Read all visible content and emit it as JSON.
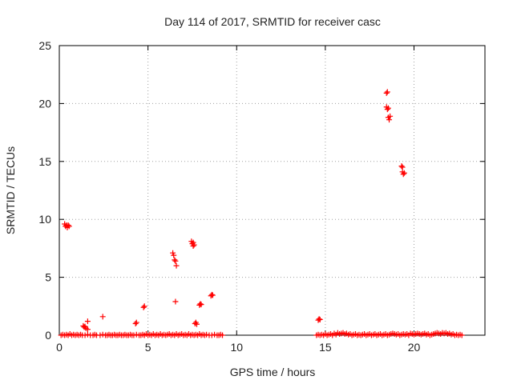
{
  "chart_data": {
    "type": "scatter",
    "title": "Day 114 of 2017, SRMTID for receiver casc",
    "xlabel": "GPS time / hours",
    "ylabel": "SRMTID / TECUs",
    "xlim": [
      0,
      24
    ],
    "ylim": [
      0,
      25
    ],
    "xticks": [
      0,
      5,
      10,
      15,
      20
    ],
    "yticks": [
      0,
      5,
      10,
      15,
      20,
      25
    ],
    "grid": true,
    "marker": "plus",
    "color": "#ff0000",
    "series": [
      {
        "points": [
          [
            0.1,
            0
          ],
          [
            0.2,
            0.05
          ],
          [
            0.3,
            0
          ],
          [
            0.4,
            0.05
          ],
          [
            0.5,
            0
          ],
          [
            0.6,
            0.1
          ],
          [
            0.7,
            0
          ],
          [
            0.8,
            0.05
          ],
          [
            0.9,
            0
          ],
          [
            1.0,
            0.05
          ],
          [
            1.1,
            0
          ],
          [
            1.2,
            0.05
          ],
          [
            1.3,
            0
          ],
          [
            1.45,
            0
          ],
          [
            1.6,
            0.05
          ],
          [
            1.75,
            0
          ],
          [
            1.9,
            0
          ],
          [
            2.0,
            0.05
          ],
          [
            2.1,
            0
          ],
          [
            2.3,
            0
          ],
          [
            2.45,
            0.05
          ],
          [
            2.6,
            0
          ],
          [
            2.7,
            0
          ],
          [
            2.8,
            0.05
          ],
          [
            2.9,
            0
          ],
          [
            3.0,
            0
          ],
          [
            3.1,
            0.05
          ],
          [
            3.2,
            0
          ],
          [
            3.3,
            0
          ],
          [
            3.4,
            0.05
          ],
          [
            3.5,
            0
          ],
          [
            3.6,
            0
          ],
          [
            3.7,
            0.05
          ],
          [
            3.8,
            0
          ],
          [
            3.9,
            0
          ],
          [
            4.0,
            0.05
          ],
          [
            4.1,
            0
          ],
          [
            4.2,
            0
          ],
          [
            4.35,
            0.05
          ],
          [
            4.5,
            0
          ],
          [
            4.6,
            0
          ],
          [
            4.7,
            0.05
          ],
          [
            4.8,
            0
          ],
          [
            4.9,
            0.1
          ],
          [
            5.0,
            0
          ],
          [
            5.1,
            0.05
          ],
          [
            5.2,
            0
          ],
          [
            5.3,
            0.1
          ],
          [
            5.4,
            0
          ],
          [
            5.5,
            0.05
          ],
          [
            5.6,
            0
          ],
          [
            5.7,
            0.1
          ],
          [
            5.8,
            0
          ],
          [
            5.9,
            0.05
          ],
          [
            6.0,
            0
          ],
          [
            6.1,
            0.05
          ],
          [
            6.2,
            0.1
          ],
          [
            6.3,
            0
          ],
          [
            6.4,
            0.05
          ],
          [
            6.5,
            0
          ],
          [
            6.6,
            0.1
          ],
          [
            6.7,
            0
          ],
          [
            6.8,
            0.05
          ],
          [
            6.9,
            0.1
          ],
          [
            7.0,
            0
          ],
          [
            7.1,
            0.05
          ],
          [
            7.2,
            0
          ],
          [
            7.3,
            0.1
          ],
          [
            7.4,
            0
          ],
          [
            7.5,
            0.05
          ],
          [
            7.6,
            0
          ],
          [
            7.7,
            0.05
          ],
          [
            7.8,
            0
          ],
          [
            7.9,
            0.1
          ],
          [
            8.0,
            0
          ],
          [
            8.1,
            0.05
          ],
          [
            8.2,
            0
          ],
          [
            8.3,
            0.05
          ],
          [
            8.45,
            0
          ],
          [
            8.6,
            0
          ],
          [
            8.75,
            0.05
          ],
          [
            8.9,
            0
          ],
          [
            9.0,
            0
          ],
          [
            9.1,
            0.05
          ],
          [
            9.2,
            0
          ],
          [
            0.3,
            9.6
          ],
          [
            0.35,
            9.4
          ],
          [
            0.4,
            9.5
          ],
          [
            0.45,
            9.3
          ],
          [
            0.5,
            9.5
          ],
          [
            0.55,
            9.4
          ],
          [
            1.35,
            0.8
          ],
          [
            1.4,
            0.7
          ],
          [
            1.45,
            0.75
          ],
          [
            1.5,
            0.6
          ],
          [
            1.6,
            0.5
          ],
          [
            1.6,
            1.2
          ],
          [
            2.45,
            1.6
          ],
          [
            4.3,
            1.0
          ],
          [
            4.35,
            1.1
          ],
          [
            4.75,
            2.4
          ],
          [
            4.8,
            2.5
          ],
          [
            6.4,
            7.1
          ],
          [
            6.45,
            6.9
          ],
          [
            6.5,
            6.5
          ],
          [
            6.55,
            6.4
          ],
          [
            6.6,
            6.0
          ],
          [
            6.55,
            2.9
          ],
          [
            7.45,
            8.1
          ],
          [
            7.5,
            7.9
          ],
          [
            7.55,
            8.0
          ],
          [
            7.55,
            7.7
          ],
          [
            7.6,
            7.8
          ],
          [
            7.65,
            1.0
          ],
          [
            7.7,
            1.1
          ],
          [
            7.75,
            0.95
          ],
          [
            7.9,
            2.6
          ],
          [
            7.95,
            2.7
          ],
          [
            8.0,
            2.65
          ],
          [
            8.55,
            3.4
          ],
          [
            8.6,
            3.5
          ],
          [
            8.65,
            3.45
          ],
          [
            14.6,
            1.3
          ],
          [
            14.65,
            1.4
          ],
          [
            14.7,
            1.35
          ],
          [
            14.5,
            0
          ],
          [
            14.6,
            0.05
          ],
          [
            14.7,
            0
          ],
          [
            14.8,
            0.05
          ],
          [
            14.9,
            0
          ],
          [
            15.0,
            0.1
          ],
          [
            15.1,
            0
          ],
          [
            15.2,
            0.05
          ],
          [
            15.3,
            0.1
          ],
          [
            15.4,
            0
          ],
          [
            15.5,
            0.15
          ],
          [
            15.6,
            0.05
          ],
          [
            15.7,
            0.2
          ],
          [
            15.8,
            0.1
          ],
          [
            15.9,
            0.15
          ],
          [
            16.0,
            0.2
          ],
          [
            16.1,
            0.1
          ],
          [
            16.2,
            0.15
          ],
          [
            16.3,
            0.05
          ],
          [
            16.4,
            0.1
          ],
          [
            16.5,
            0
          ],
          [
            16.6,
            0.05
          ],
          [
            16.7,
            0.1
          ],
          [
            16.8,
            0
          ],
          [
            16.9,
            0.05
          ],
          [
            17.0,
            0
          ],
          [
            17.1,
            0.05
          ],
          [
            17.2,
            0.1
          ],
          [
            17.3,
            0
          ],
          [
            17.4,
            0.05
          ],
          [
            17.5,
            0.1
          ],
          [
            17.6,
            0
          ],
          [
            17.7,
            0.05
          ],
          [
            17.8,
            0.1
          ],
          [
            17.9,
            0
          ],
          [
            18.0,
            0.05
          ],
          [
            18.1,
            0.1
          ],
          [
            18.2,
            0
          ],
          [
            18.3,
            0.05
          ],
          [
            18.4,
            0.1
          ],
          [
            18.5,
            0
          ],
          [
            18.6,
            0.05
          ],
          [
            18.7,
            0.1
          ],
          [
            18.8,
            0.15
          ],
          [
            18.9,
            0.1
          ],
          [
            19.0,
            0.05
          ],
          [
            19.1,
            0.1
          ],
          [
            19.2,
            0
          ],
          [
            19.3,
            0.05
          ],
          [
            19.4,
            0.1
          ],
          [
            19.5,
            0.05
          ],
          [
            19.6,
            0.1
          ],
          [
            19.7,
            0
          ],
          [
            19.8,
            0.15
          ],
          [
            19.9,
            0.1
          ],
          [
            20.0,
            0.05
          ],
          [
            20.1,
            0.1
          ],
          [
            20.2,
            0.15
          ],
          [
            20.3,
            0.1
          ],
          [
            20.4,
            0.05
          ],
          [
            20.5,
            0.1
          ],
          [
            20.6,
            0.15
          ],
          [
            20.7,
            0.05
          ],
          [
            20.8,
            0.1
          ],
          [
            20.9,
            0
          ],
          [
            21.0,
            0.05
          ],
          [
            21.1,
            0.1
          ],
          [
            21.2,
            0.15
          ],
          [
            21.3,
            0.2
          ],
          [
            21.4,
            0.15
          ],
          [
            21.5,
            0.1
          ],
          [
            21.6,
            0.2
          ],
          [
            21.7,
            0.15
          ],
          [
            21.8,
            0.2
          ],
          [
            21.9,
            0.1
          ],
          [
            22.0,
            0.15
          ],
          [
            22.1,
            0.05
          ],
          [
            22.2,
            0.1
          ],
          [
            22.3,
            0
          ],
          [
            22.4,
            0.05
          ],
          [
            22.5,
            0
          ],
          [
            22.6,
            0.05
          ],
          [
            22.7,
            0
          ],
          [
            18.45,
            20.9
          ],
          [
            18.5,
            21.0
          ],
          [
            18.45,
            19.7
          ],
          [
            18.5,
            19.5
          ],
          [
            18.55,
            19.6
          ],
          [
            18.55,
            18.8
          ],
          [
            18.6,
            18.6
          ],
          [
            18.65,
            18.9
          ],
          [
            19.3,
            14.6
          ],
          [
            19.35,
            14.5
          ],
          [
            19.35,
            14.1
          ],
          [
            19.4,
            13.9
          ],
          [
            19.45,
            14.0
          ]
        ]
      }
    ]
  }
}
